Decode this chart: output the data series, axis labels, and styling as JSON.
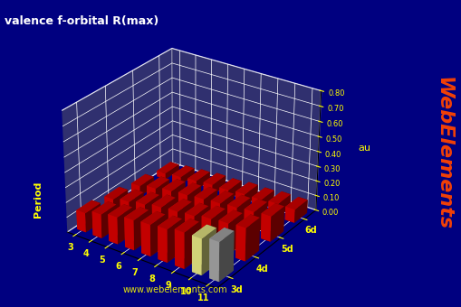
{
  "title": "valence f-orbital R(max)",
  "au_label": "au",
  "period_label": "Period",
  "xlabel_groups": [
    "3",
    "4",
    "5",
    "6",
    "7",
    "8",
    "9",
    "10",
    "11"
  ],
  "period_labels": [
    "3d",
    "4d",
    "5d",
    "6d"
  ],
  "watermark": "www.webelements.com",
  "watermark2": "WebElements",
  "background_color": "#000080",
  "bar_color_red": "#DD0000",
  "bar_color_yellow": "#EEEE88",
  "bar_color_gray": "#AAAAAA",
  "zlim": [
    0,
    0.8
  ],
  "zticks": [
    0.0,
    0.1,
    0.2,
    0.3,
    0.4,
    0.5,
    0.6,
    0.7,
    0.8
  ],
  "vals_3d": [
    0.13,
    0.16,
    0.18,
    0.2,
    0.21,
    0.22,
    0.24,
    0.24,
    0.26
  ],
  "vals_4d": [
    0.1,
    0.12,
    0.14,
    0.16,
    0.17,
    0.18,
    0.2,
    0.21,
    0.22
  ],
  "vals_5d": [
    0.07,
    0.09,
    0.11,
    0.12,
    0.13,
    0.14,
    0.15,
    0.16,
    0.17
  ],
  "vals_6d": [
    0.04,
    0.05,
    0.06,
    0.07,
    0.07,
    0.08,
    0.08,
    0.09,
    0.09
  ],
  "elev": 28,
  "azim": -55
}
